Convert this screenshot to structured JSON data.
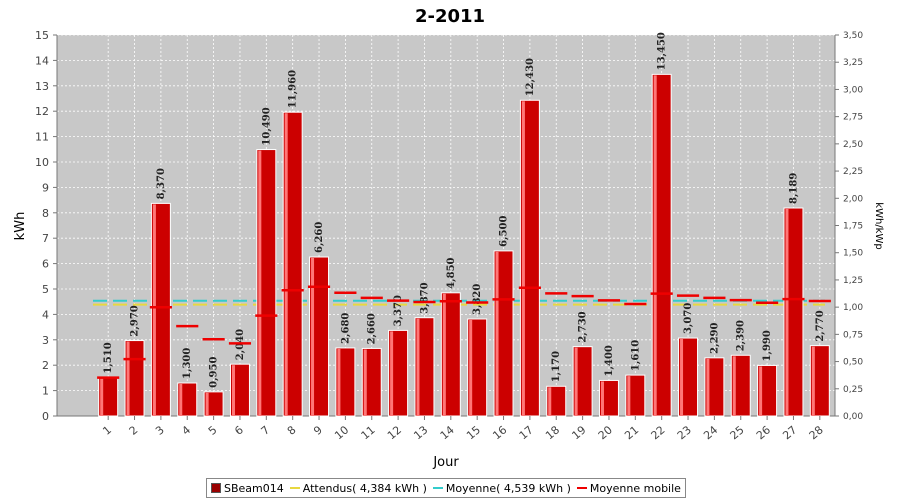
{
  "chart_data": {
    "type": "bar",
    "title": "2-2011",
    "xlabel": "Jour",
    "ylabel": "kWh",
    "y2label": "kWh/kWp",
    "ylim": [
      0,
      15
    ],
    "y2lim": [
      0,
      3.5
    ],
    "yticks": [
      "0",
      "1",
      "2",
      "3",
      "4",
      "5",
      "6",
      "7",
      "8",
      "9",
      "10",
      "11",
      "12",
      "13",
      "14",
      "15"
    ],
    "y2ticks": [
      "0,00",
      "0,25",
      "0,50",
      "0,75",
      "1,00",
      "1,25",
      "1,50",
      "1,75",
      "2,00",
      "2,25",
      "2,50",
      "2,75",
      "3,00",
      "3,25",
      "3,50"
    ],
    "categories": [
      "1",
      "2",
      "3",
      "4",
      "5",
      "6",
      "7",
      "8",
      "9",
      "10",
      "11",
      "12",
      "13",
      "14",
      "15",
      "16",
      "17",
      "18",
      "19",
      "20",
      "21",
      "22",
      "23",
      "24",
      "25",
      "26",
      "27",
      "28"
    ],
    "series": [
      {
        "name": "SBeam014",
        "kind": "bar",
        "color": "#cc0000",
        "values": [
          1.51,
          2.97,
          8.37,
          1.3,
          0.95,
          2.04,
          10.49,
          11.96,
          6.26,
          2.68,
          2.66,
          3.37,
          3.87,
          4.85,
          3.82,
          6.5,
          12.43,
          1.17,
          2.73,
          1.4,
          1.61,
          13.45,
          3.07,
          2.29,
          2.39,
          1.99,
          8.189,
          2.77
        ],
        "labels": [
          "1,510",
          "2,970",
          "8,370",
          "1,300",
          "0,950",
          "2,040",
          "10,490",
          "11,960",
          "6,260",
          "2,680",
          "2,660",
          "3,370",
          "3,870",
          "4,850",
          "3,820",
          "6,500",
          "12,430",
          "1,170",
          "2,730",
          "1,400",
          "1,610",
          "13,450",
          "3,070",
          "2,290",
          "2,390",
          "1,990",
          "8,189",
          "2,770"
        ]
      },
      {
        "name": "Attendus( 4,384 kWh )",
        "kind": "line",
        "color": "#e8d840",
        "value": 4.384
      },
      {
        "name": "Moyenne( 4,539 kWh )",
        "kind": "line",
        "color": "#33cccc",
        "value": 4.539
      },
      {
        "name": "Moyenne mobile",
        "kind": "step",
        "color": "#ee0000",
        "values": [
          1.51,
          2.24,
          4.28,
          3.54,
          3.02,
          2.86,
          3.95,
          4.95,
          5.09,
          4.85,
          4.65,
          4.54,
          4.49,
          4.52,
          4.47,
          4.59,
          5.05,
          4.83,
          4.72,
          4.55,
          4.41,
          4.82,
          4.74,
          4.65,
          4.56,
          4.46,
          4.6,
          4.53
        ]
      }
    ],
    "grid": true,
    "legend_position": "bottom"
  }
}
